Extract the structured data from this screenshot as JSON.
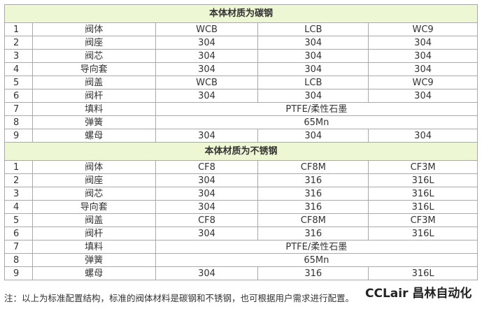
{
  "sections": [
    {
      "title": "本体材质为碳钢",
      "rows": [
        [
          "1",
          "阀体",
          "WCB",
          "LCB",
          "WC9"
        ],
        [
          "2",
          "阀座",
          "304",
          "304",
          "304"
        ],
        [
          "3",
          "阀芯",
          "304",
          "304",
          "304"
        ],
        [
          "4",
          "导向套",
          "304",
          "304",
          "304"
        ],
        [
          "5",
          "阀盖",
          "WCB",
          "LCB",
          "WC9"
        ],
        [
          "6",
          "阀杆",
          "304",
          "304",
          "304"
        ],
        [
          "7",
          "填料",
          "PTFE/柔性石墨"
        ],
        [
          "8",
          "弹簧",
          "65Mn"
        ],
        [
          "9",
          "螺母",
          "304",
          "304",
          "304"
        ]
      ]
    },
    {
      "title": "本体材质为不锈钢",
      "rows": [
        [
          "1",
          "阀体",
          "CF8",
          "CF8M",
          "CF3M"
        ],
        [
          "2",
          "阀座",
          "304",
          "316",
          "316L"
        ],
        [
          "3",
          "阀芯",
          "304",
          "316",
          "316L"
        ],
        [
          "4",
          "导向套",
          "304",
          "316",
          "316L"
        ],
        [
          "5",
          "阀盖",
          "CF8",
          "CF8M",
          "CF3M"
        ],
        [
          "6",
          "阀杆",
          "304",
          "316",
          "316L"
        ],
        [
          "7",
          "填料",
          "PTFE/柔性石墨"
        ],
        [
          "8",
          "弹簧",
          "65Mn"
        ],
        [
          "9",
          "螺母",
          "304",
          "316",
          "316L"
        ]
      ]
    }
  ],
  "note": "注：以上为标准配置结构，标准的阀体材料是碳钢和不锈钢，也可根据用户需求进行配置。",
  "watermark": "CCLair 昌林自动化"
}
